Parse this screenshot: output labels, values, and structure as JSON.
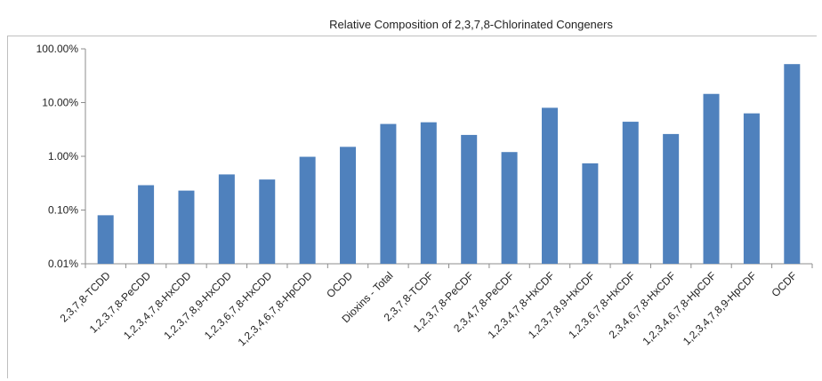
{
  "chart_data": {
    "type": "bar",
    "title": "Relative Composition of 2,3,7,8-Chlorinated Congeners",
    "y_scale": "log",
    "ylim": [
      0.01,
      100
    ],
    "y_ticks": [
      0.01,
      0.1,
      1,
      10,
      100
    ],
    "y_tick_labels": [
      "0.01%",
      "0.10%",
      "1.00%",
      "10.00%",
      "100.00%"
    ],
    "grid": false,
    "bar_color": "#4f81bd",
    "categories": [
      "2,3,7,8-TCDD",
      "1,2,3,7,8-PeCDD",
      "1,2,3,4,7,8-HxCDD",
      "1,2,3,7,8,9-HxCDD",
      "1,2,3,6,7,8-HxCDD",
      "1,2,3,4,6,7,8-HpCDD",
      "OCDD",
      "Dioxins - Total",
      "2,3,7,8-TCDF",
      "1,2,3,7,8-PeCDF",
      "2,3,4,7,8-PeCDF",
      "1,2,3,4,7,8-HxCDF",
      "1,2,3,7,8,9-HxCDF",
      "1,2,3,6,7,8-HxCDF",
      "2,3,4,6,7,8-HxCDF",
      "1,2,3,4,6,7,8-HpCDF",
      "1,2,3,4,7,8,9-HpCDF",
      "OCDF"
    ],
    "values": [
      0.08,
      0.29,
      0.23,
      0.46,
      0.37,
      0.98,
      1.5,
      4.0,
      4.3,
      2.5,
      1.2,
      8.0,
      0.74,
      4.4,
      2.6,
      14.5,
      6.3,
      52.0
    ]
  }
}
